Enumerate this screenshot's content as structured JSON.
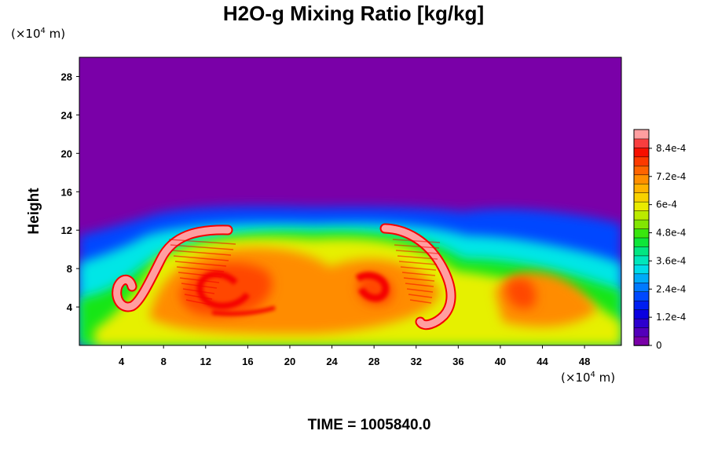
{
  "chart_data": {
    "type": "heatmap",
    "title": "H2O-g Mixing Ratio [kg/kg]",
    "ylabel": "Height",
    "x_unit": {
      "prefix": "(×10",
      "exp": "4",
      "suffix": " m)"
    },
    "y_unit": {
      "prefix": "(×10",
      "exp": "4",
      "suffix": " m)"
    },
    "xlim": [
      0,
      51.5
    ],
    "ylim": [
      0,
      30
    ],
    "x_ticks": [
      "4",
      "8",
      "12",
      "16",
      "20",
      "24",
      "28",
      "32",
      "36",
      "40",
      "44",
      "48"
    ],
    "y_ticks": [
      "4",
      "8",
      "12",
      "16",
      "20",
      "24",
      "28"
    ],
    "colorbar": {
      "range": [
        0,
        0.00092
      ],
      "labels": [
        "0",
        "1.2e-4",
        "2.4e-4",
        "3.6e-4",
        "4.8e-4",
        "6e-4",
        "7.2e-4",
        "8.4e-4"
      ],
      "colors": [
        "#7a00a8",
        "#3a00c8",
        "#0000e6",
        "#0046ff",
        "#0096ff",
        "#00e6e6",
        "#00e68c",
        "#14e614",
        "#8ce600",
        "#e6f000",
        "#ffc800",
        "#ff8c00",
        "#ff4600",
        "#f50000",
        "#ff9ea0"
      ]
    },
    "field_background": "#7a00a8",
    "time_label": "TIME = 1005840.0"
  }
}
